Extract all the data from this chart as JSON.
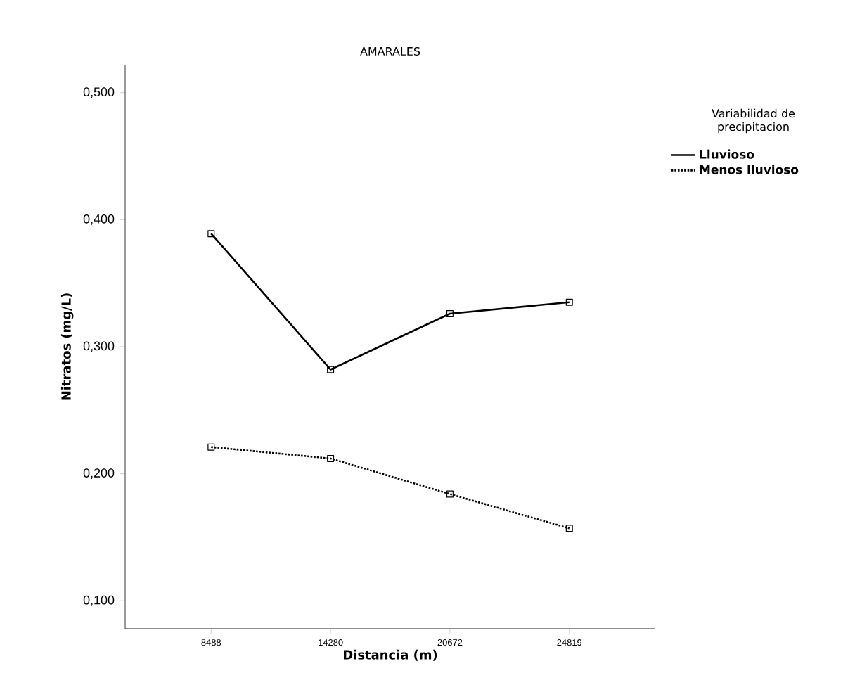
{
  "chart_data": {
    "type": "line",
    "title": "AMARALES",
    "xlabel": "Distancia (m)",
    "ylabel": "Nitratos (mg/L)",
    "legend_title": "Variabilidad de precipitacion",
    "categories": [
      "8488",
      "14280",
      "20672",
      "24819"
    ],
    "series": [
      {
        "name": "Lluvioso",
        "color": "#000000",
        "line_style": "solid",
        "values": [
          0.389,
          0.282,
          0.326,
          0.335
        ]
      },
      {
        "name": "Menos lluvioso",
        "color": "#000000",
        "line_style": "dotted",
        "values": [
          0.221,
          0.212,
          0.184,
          0.157
        ]
      }
    ],
    "ylim": [
      0.078,
      0.522
    ],
    "yticks": [
      {
        "value": 0.1,
        "label": "0,100"
      },
      {
        "value": 0.2,
        "label": "0,200"
      },
      {
        "value": 0.3,
        "label": "0,300"
      },
      {
        "value": 0.4,
        "label": "0,400"
      },
      {
        "value": 0.5,
        "label": "0,500"
      }
    ],
    "marker": "square",
    "legend": "right",
    "grid": false
  }
}
